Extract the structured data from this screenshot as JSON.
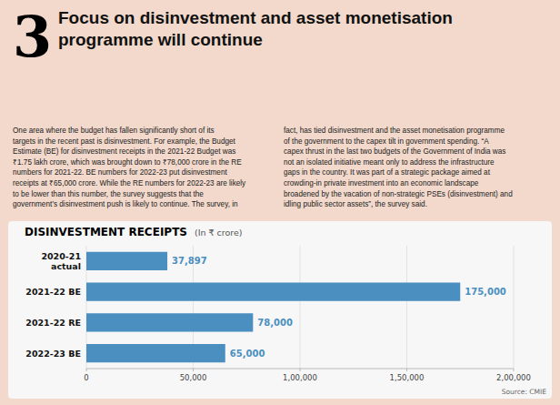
{
  "heading_number": "3",
  "heading": "Focus on disinvestment and asset monetisation\nprogramme will continue",
  "paragraphs": [
    "One area where the budget has fallen significantly short of its\ntargets in the recent past is disinvestment. For example, the Budget\nEstimate (BE) for disinvestment receipts in the 2021-22 Budget was\n₹1.75 lakh crore, which was brought down to ₹78,000 crore in the RE\nnumbers for 2021-22. BE numbers for 2022-23 put disinvestment\nreceipts at ₹65,000 crore. While the RE numbers for 2022-23 are likely\nto be lower than this number, the survey suggests that the\ngovernment’s disinvestment push is likely to continue. The survey, in",
    "fact, has tied disinvestment and the asset monetisation programme\nof the government to the capex tilt in government spending. “A\ncapex thrust in the last two budgets of the Government of India was\nnot an isolated initiative meant only to address the infrastructure\ngaps in the country. It was part of a strategic package aimed at\ncrowding-in private investment into an economic landscape\nbroadened by the vacation of non-strategic PSEs (disinvestment) and\nidling public sector assets”, the survey said."
  ],
  "chart_data": {
    "type": "bar",
    "orientation": "horizontal",
    "title": "DISINVESTMENT RECEIPTS",
    "subtitle": "(In ₹ crore)",
    "source": "Source: CMIE",
    "categories": [
      "2020-21\nactual",
      "2021-22 BE",
      "2021-22 RE",
      "2022-23 BE"
    ],
    "values": [
      37897,
      175000,
      78000,
      65000
    ],
    "value_labels": [
      "37,897",
      "175,000",
      "78,000",
      "65,000"
    ],
    "data_labels": true,
    "color": "#4A8FC0",
    "xlim": [
      0,
      200000
    ],
    "xticks": [
      0,
      {
        "value": 50000,
        "label": "50,000"
      },
      {
        "value": 100000,
        "label": "1,00,000"
      },
      {
        "value": 150000,
        "label": "1,50,000"
      },
      {
        "value": 200000,
        "label": "2,00,000"
      }
    ],
    "grid": true
  }
}
